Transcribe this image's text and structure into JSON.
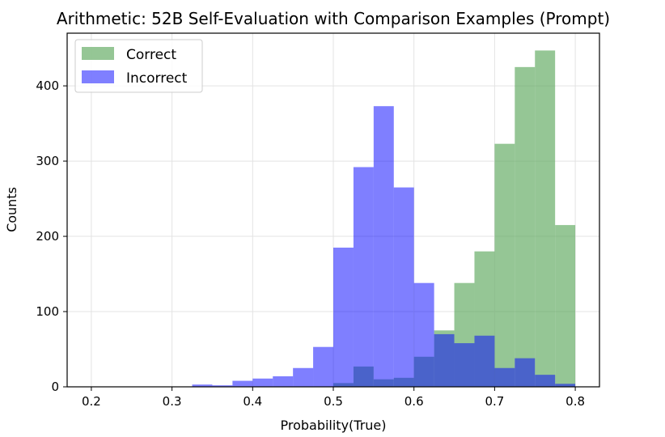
{
  "chart_data": {
    "type": "bar",
    "title": "Arithmetic: 52B Self-Evaluation with Comparison Examples (Prompt)",
    "xlabel": "Probability(True)",
    "ylabel": "Counts",
    "xlim": [
      0.17,
      0.83
    ],
    "ylim": [
      0,
      470
    ],
    "xticks": [
      0.2,
      0.3,
      0.4,
      0.5,
      0.6,
      0.7,
      0.8
    ],
    "xtick_labels": [
      "0.2",
      "0.3",
      "0.4",
      "0.5",
      "0.6",
      "0.7",
      "0.8"
    ],
    "yticks": [
      0,
      100,
      200,
      300,
      400
    ],
    "ytick_labels": [
      "0",
      "100",
      "200",
      "300",
      "400"
    ],
    "grid": true,
    "legend_position": "top-left",
    "bin_edges": [
      0.2,
      0.225,
      0.25,
      0.275,
      0.3,
      0.325,
      0.35,
      0.375,
      0.4,
      0.425,
      0.45,
      0.475,
      0.5,
      0.525,
      0.55,
      0.575,
      0.6,
      0.625,
      0.65,
      0.675,
      0.7,
      0.725,
      0.75,
      0.775,
      0.8
    ],
    "series": [
      {
        "name": "Correct",
        "color": "#5ca85c",
        "opacity": 0.65,
        "values": [
          0,
          0,
          0,
          0,
          0,
          0,
          0,
          0,
          0,
          0,
          0,
          0,
          5,
          27,
          10,
          12,
          40,
          75,
          138,
          180,
          323,
          425,
          447,
          215
        ]
      },
      {
        "name": "Incorrect",
        "color": "#0000ff",
        "opacity": 0.5,
        "values": [
          0,
          0,
          0,
          0,
          0,
          3,
          2,
          8,
          11,
          14,
          25,
          53,
          185,
          292,
          373,
          265,
          138,
          70,
          58,
          68,
          25,
          38,
          16,
          4
        ]
      }
    ]
  }
}
